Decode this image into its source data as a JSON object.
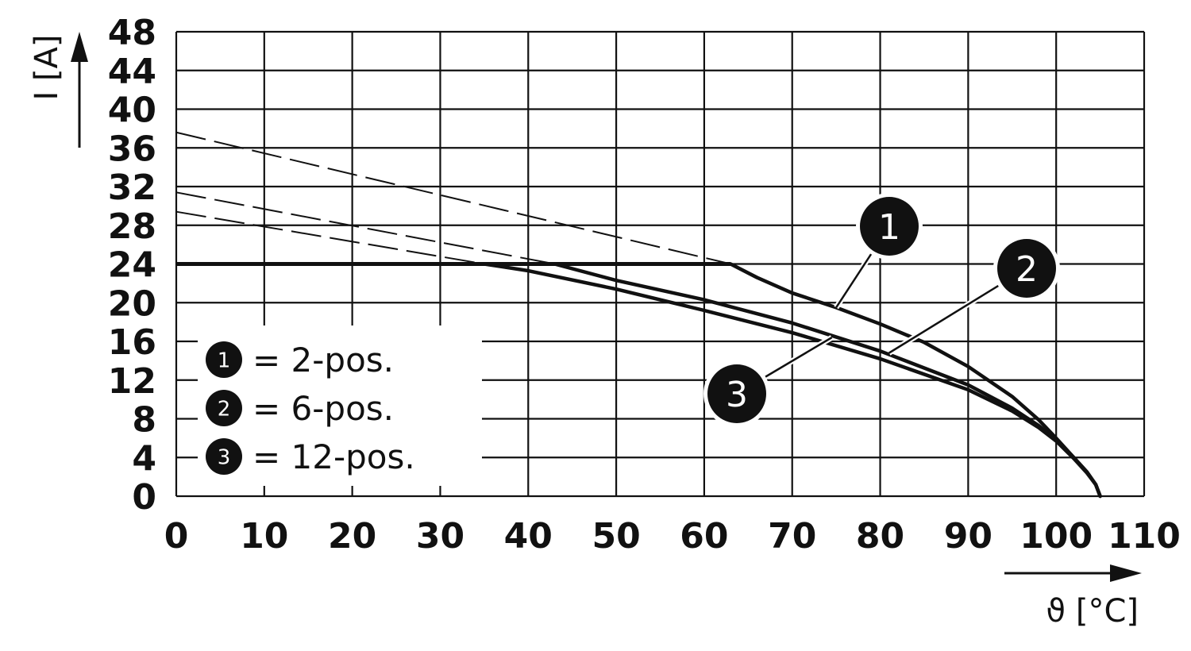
{
  "chart_data": {
    "type": "line",
    "xlabel": "ϑ [°C]",
    "ylabel": "I [A]",
    "xlim": [
      0,
      110
    ],
    "ylim": [
      0,
      48
    ],
    "x_ticks": [
      "0",
      "10",
      "20",
      "30",
      "40",
      "50",
      "60",
      "70",
      "80",
      "90",
      "100",
      "110"
    ],
    "y_ticks": [
      "0",
      "4",
      "8",
      "12",
      "16",
      "20",
      "24",
      "28",
      "32",
      "36",
      "40",
      "44",
      "48"
    ],
    "grid": true,
    "legend_position": "bottom-left",
    "legend": [
      {
        "marker": "1",
        "label": "= 2-pos."
      },
      {
        "marker": "2",
        "label": "= 6-pos."
      },
      {
        "marker": "3",
        "label": "= 12-pos."
      }
    ],
    "series": [
      {
        "marker": "1",
        "x": [
          63,
          66,
          70,
          75,
          80,
          85,
          90,
          95,
          98,
          100,
          102,
          103.5,
          104.5,
          105
        ],
        "y": [
          24,
          22.6,
          21,
          19.5,
          17.8,
          15.9,
          13.4,
          10.3,
          7.9,
          6.0,
          4.0,
          2.5,
          1.2,
          0
        ]
      },
      {
        "marker": "2",
        "x": [
          43,
          50,
          60,
          70,
          80,
          90,
          95,
          98,
          100,
          102,
          103.5,
          104.5,
          105
        ],
        "y": [
          24,
          22.3,
          20.3,
          17.9,
          15.0,
          11.5,
          9.1,
          7.3,
          5.8,
          4.0,
          2.5,
          1.2,
          0
        ]
      },
      {
        "marker": "3",
        "x": [
          35,
          40,
          50,
          60,
          70,
          80,
          90,
          95,
          98,
          100,
          102,
          103.5,
          104.5,
          105
        ],
        "y": [
          24,
          23.3,
          21.4,
          19.2,
          16.9,
          14.2,
          11.0,
          8.8,
          7.1,
          5.7,
          3.9,
          2.4,
          1.2,
          0
        ]
      }
    ],
    "current_limit": {
      "y": 24,
      "x": [
        0,
        63
      ]
    },
    "extrapolations": [
      {
        "x": [
          0,
          63
        ],
        "y": [
          37.6,
          24
        ]
      },
      {
        "x": [
          0,
          43
        ],
        "y": [
          31.4,
          24
        ]
      },
      {
        "x": [
          0,
          35
        ],
        "y": [
          29.4,
          24
        ]
      }
    ]
  }
}
